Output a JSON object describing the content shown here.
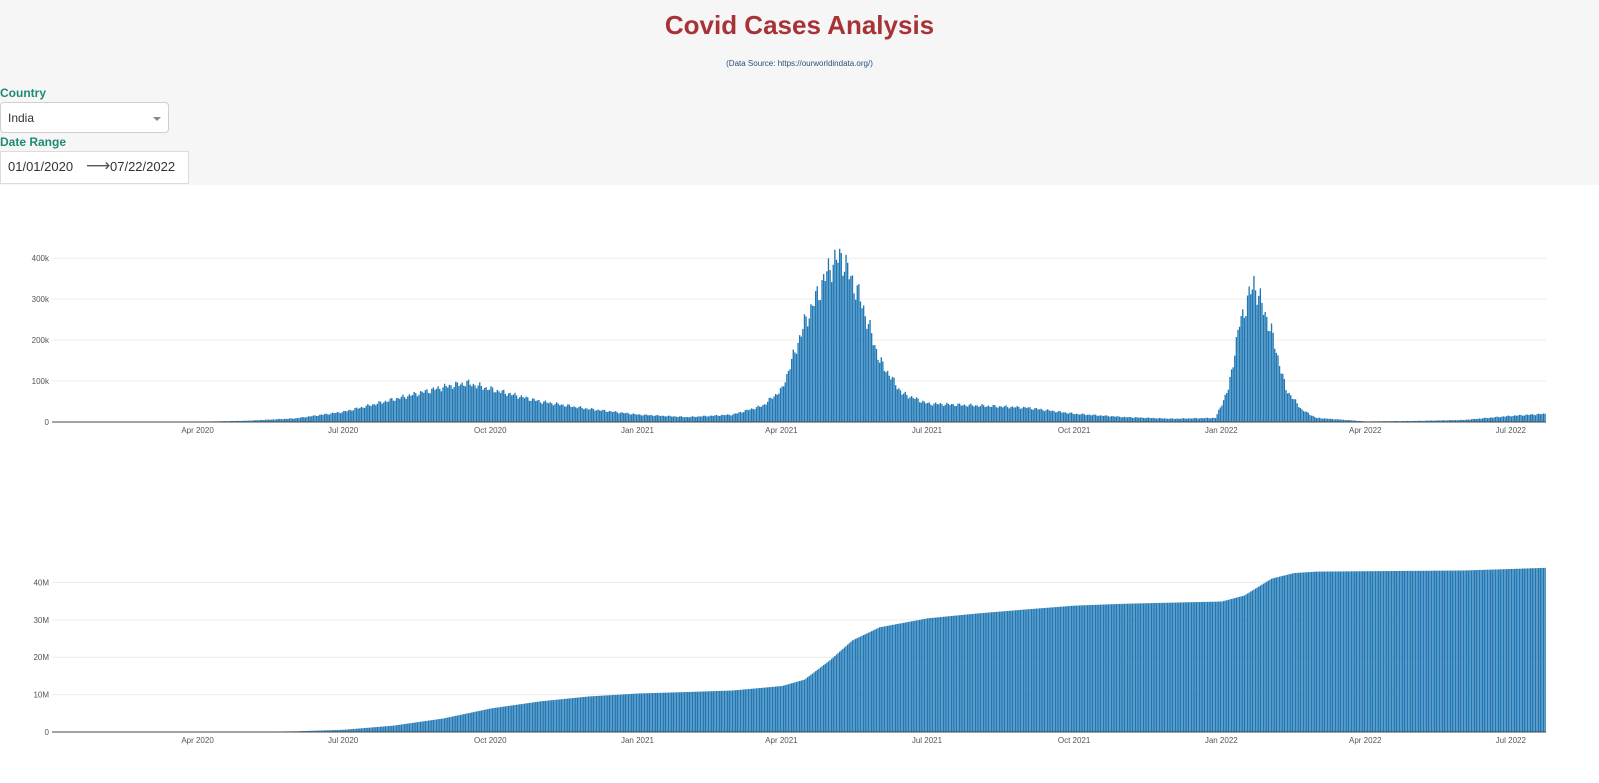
{
  "header": {
    "title": "Covid Cases Analysis",
    "source": "(Data Source: https://ourworldindata.org/)"
  },
  "controls": {
    "country_label": "Country",
    "country_value": "India",
    "date_label": "Date Range",
    "start_date": "01/01/2020",
    "end_date": "07/22/2022",
    "arrow": "⟶"
  },
  "colors": {
    "bar": "#1f77b4",
    "title": "#a83236",
    "label": "#1f8a74"
  },
  "chart_data": [
    {
      "type": "bar",
      "x_start": "2020-01-01",
      "x_end": "2022-07-22",
      "xlim": [
        "2020-01-01",
        "2022-07-22"
      ],
      "x_ticks": [
        "Apr 2020",
        "Jul 2020",
        "Oct 2020",
        "Jan 2021",
        "Apr 2021",
        "Jul 2021",
        "Oct 2021",
        "Jan 2022",
        "Apr 2022",
        "Jul 2022"
      ],
      "y_ticks": [
        "0",
        "100k",
        "200k",
        "300k",
        "400k"
      ],
      "ylim": [
        0,
        420000
      ],
      "grid": true,
      "series": [
        {
          "x": [
            "2020-01-01",
            "2020-03-01",
            "2020-04-01",
            "2020-05-01",
            "2020-06-01",
            "2020-07-01",
            "2020-08-01",
            "2020-09-01",
            "2020-09-16",
            "2020-10-01",
            "2020-11-01",
            "2020-12-01",
            "2021-01-01",
            "2021-02-01",
            "2021-03-01",
            "2021-03-20",
            "2021-04-01",
            "2021-04-15",
            "2021-05-01",
            "2021-05-08",
            "2021-05-20",
            "2021-06-01",
            "2021-06-15",
            "2021-07-01",
            "2021-08-01",
            "2021-09-01",
            "2021-10-01",
            "2021-11-01",
            "2021-12-01",
            "2021-12-28",
            "2022-01-05",
            "2022-01-12",
            "2022-01-21",
            "2022-02-01",
            "2022-02-10",
            "2022-02-20",
            "2022-03-01",
            "2022-04-01",
            "2022-05-01",
            "2022-06-01",
            "2022-07-01",
            "2022-07-22"
          ],
          "values": [
            0,
            50,
            800,
            3000,
            9000,
            25000,
            55000,
            85000,
            95000,
            80000,
            50000,
            32000,
            18000,
            12000,
            18000,
            40000,
            80000,
            240000,
            380000,
            405000,
            300000,
            150000,
            70000,
            45000,
            40000,
            35000,
            20000,
            12000,
            8000,
            10000,
            80000,
            240000,
            340000,
            220000,
            80000,
            30000,
            10000,
            1500,
            2500,
            5000,
            15000,
            20000
          ]
        }
      ]
    },
    {
      "type": "bar",
      "x_start": "2020-01-01",
      "x_end": "2022-07-22",
      "xlim": [
        "2020-01-01",
        "2022-07-22"
      ],
      "x_ticks": [
        "Apr 2020",
        "Jul 2020",
        "Oct 2020",
        "Jan 2021",
        "Apr 2021",
        "Jul 2021",
        "Oct 2021",
        "Jan 2022",
        "Apr 2022",
        "Jul 2022"
      ],
      "y_ticks": [
        "0",
        "10M",
        "20M",
        "30M",
        "40M"
      ],
      "ylim": [
        0,
        46000000
      ],
      "grid": true,
      "series": [
        {
          "x": [
            "2020-01-01",
            "2020-03-01",
            "2020-05-01",
            "2020-06-01",
            "2020-07-01",
            "2020-08-01",
            "2020-09-01",
            "2020-10-01",
            "2020-11-01",
            "2020-12-01",
            "2021-01-01",
            "2021-02-01",
            "2021-03-01",
            "2021-04-01",
            "2021-04-15",
            "2021-05-01",
            "2021-05-15",
            "2021-06-01",
            "2021-07-01",
            "2021-08-01",
            "2021-09-01",
            "2021-10-01",
            "2021-11-01",
            "2021-12-01",
            "2022-01-01",
            "2022-01-15",
            "2022-02-01",
            "2022-02-15",
            "2022-03-01",
            "2022-04-01",
            "2022-05-01",
            "2022-06-01",
            "2022-07-01",
            "2022-07-22"
          ],
          "values": [
            0,
            3000,
            35000,
            190000,
            600000,
            1700000,
            3600000,
            6300000,
            8200000,
            9500000,
            10300000,
            10700000,
            11100000,
            12300000,
            14000000,
            19200000,
            24500000,
            28000000,
            30400000,
            31700000,
            32800000,
            33800000,
            34300000,
            34600000,
            34900000,
            36500000,
            41000000,
            42500000,
            42900000,
            43000000,
            43100000,
            43200000,
            43600000,
            43900000
          ]
        }
      ]
    }
  ]
}
